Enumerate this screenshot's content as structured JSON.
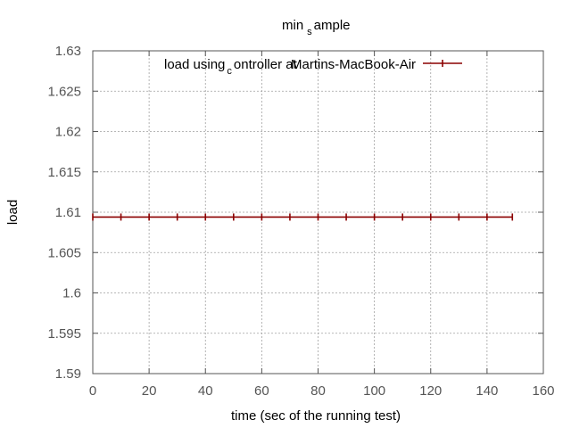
{
  "chart_data": {
    "type": "line",
    "title": {
      "base": "min",
      "sub": "s",
      "rest": "ample"
    },
    "xlabel": "time (sec of the running test)",
    "ylabel": "load",
    "xlim": [
      0,
      160
    ],
    "ylim": [
      1.59,
      1.63
    ],
    "xticks": [
      0,
      20,
      40,
      60,
      80,
      100,
      120,
      140,
      160
    ],
    "yticks": [
      1.59,
      1.595,
      1.6,
      1.605,
      1.61,
      1.615,
      1.62,
      1.625,
      1.63
    ],
    "ytick_labels": [
      "1.59",
      "1.595",
      "1.6",
      "1.605",
      "1.61",
      "1.615",
      "1.62",
      "1.625",
      "1.63"
    ],
    "grid": true,
    "legend_position": "top-right",
    "legend": {
      "part1": "load using",
      "sub": "c",
      "part2": "ontroller at",
      "overlap": "Martins-MacBook-Air"
    },
    "series": [
      {
        "name": "load using_controller at Martins-MacBook-Air",
        "color": "#8b0000",
        "x": [
          0,
          10,
          20,
          30,
          40,
          50,
          60,
          70,
          80,
          90,
          100,
          110,
          120,
          130,
          140,
          149
        ],
        "y": [
          1.6094,
          1.6094,
          1.6094,
          1.6094,
          1.6094,
          1.6094,
          1.6094,
          1.6094,
          1.6094,
          1.6094,
          1.6094,
          1.6094,
          1.6094,
          1.6094,
          1.6094,
          1.6094
        ]
      }
    ]
  }
}
